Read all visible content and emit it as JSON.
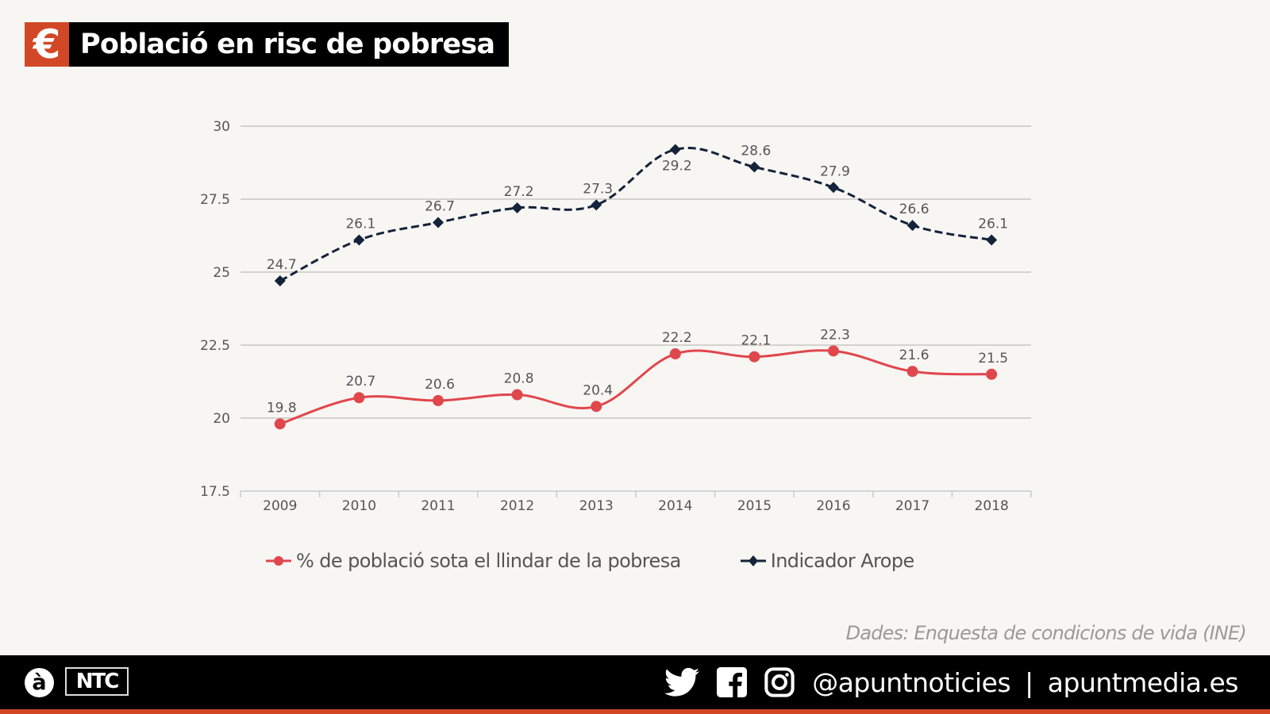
{
  "header": {
    "icon": "euro-icon",
    "icon_glyph": "€",
    "title": "Població en risc de pobresa"
  },
  "chart_data": {
    "type": "line",
    "title": "Població en risc de pobresa",
    "xlabel": "",
    "ylabel": "",
    "categories": [
      "2009",
      "2010",
      "2011",
      "2012",
      "2013",
      "2014",
      "2015",
      "2016",
      "2017",
      "2018"
    ],
    "ylim": [
      17.5,
      30
    ],
    "yticks": [
      "30",
      "27.5",
      "25",
      "22.5",
      "20",
      "17.5"
    ],
    "ytick_values": [
      30,
      27.5,
      25,
      22.5,
      20,
      17.5
    ],
    "grid": true,
    "legend_position": "bottom",
    "series": [
      {
        "name": "% de població sota el llindar de la pobresa",
        "color": "#e0474c",
        "marker": "circle",
        "line_style": "solid",
        "values": [
          19.8,
          20.7,
          20.6,
          20.8,
          20.4,
          22.2,
          22.1,
          22.3,
          21.6,
          21.5
        ],
        "labels": [
          "19.8",
          "20.7",
          "20.6",
          "20.8",
          "20.4",
          "22.2",
          "22.1",
          "22.3",
          "21.6",
          "21.5"
        ]
      },
      {
        "name": "Indicador Arope",
        "color": "#14233a",
        "marker": "diamond",
        "line_style": "dashed",
        "values": [
          24.7,
          26.1,
          26.7,
          27.2,
          27.3,
          29.2,
          28.6,
          27.9,
          26.6,
          26.1
        ],
        "labels": [
          "24.7",
          "26.1",
          "26.7",
          "27.2",
          "27.3",
          "29.2",
          "28.6",
          "27.9",
          "26.6",
          "26.1"
        ]
      }
    ]
  },
  "legend": {
    "items": [
      {
        "label": "% de població sota el llindar de la pobresa",
        "color": "#e0474c",
        "marker": "circle"
      },
      {
        "label": "Indicador Arope",
        "color": "#14233a",
        "marker": "diamond"
      }
    ]
  },
  "source": "Dades: Enquesta de condicions de vida (INE)",
  "footer": {
    "brand_logo": "à",
    "brand_name": "NTC",
    "social_icons": [
      "twitter-icon",
      "facebook-icon",
      "instagram-icon"
    ],
    "handle": "@apuntnoticies",
    "separator": "|",
    "website": "apuntmedia.es"
  },
  "colors": {
    "accent": "#d24726",
    "background": "#f8f6f3",
    "footer": "#000000"
  }
}
